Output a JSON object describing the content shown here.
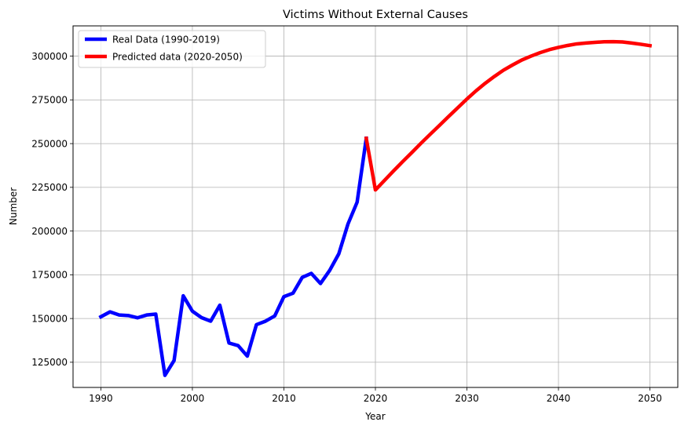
{
  "chart_data": {
    "type": "line",
    "title": "Victims Without External Causes",
    "xlabel": "Year",
    "ylabel": "Number",
    "xlim": [
      1986.96,
      2053.04
    ],
    "ylim": [
      110600,
      317300
    ],
    "xticks": [
      1990,
      2000,
      2010,
      2020,
      2030,
      2040,
      2050
    ],
    "yticks": [
      125000,
      150000,
      175000,
      200000,
      225000,
      250000,
      275000,
      300000
    ],
    "grid": true,
    "legend_position": "top-left",
    "series": [
      {
        "name": "Real Data (1990-2019)",
        "color": "#0000ff",
        "x": [
          1990,
          1991,
          1992,
          1993,
          1994,
          1995,
          1996,
          1997,
          1998,
          1999,
          2000,
          2001,
          2002,
          2003,
          2004,
          2005,
          2006,
          2007,
          2008,
          2009,
          2010,
          2011,
          2012,
          2013,
          2014,
          2015,
          2016,
          2017,
          2018,
          2019
        ],
        "y": [
          151000,
          153800,
          152000,
          151700,
          150400,
          152000,
          152500,
          117500,
          126000,
          163000,
          154200,
          150500,
          148500,
          157600,
          136000,
          134500,
          128500,
          146500,
          148500,
          151500,
          162500,
          164500,
          173500,
          175800,
          170000,
          177500,
          187000,
          204000,
          216500,
          253000
        ]
      },
      {
        "name": "Predicted data (2020-2050)",
        "color": "#ff0000",
        "x": [
          2019,
          2020,
          2021,
          2022,
          2023,
          2024,
          2025,
          2026,
          2027,
          2028,
          2029,
          2030,
          2031,
          2032,
          2033,
          2034,
          2035,
          2036,
          2037,
          2038,
          2039,
          2040,
          2041,
          2042,
          2043,
          2044,
          2045,
          2046,
          2047,
          2048,
          2049,
          2050
        ],
        "y": [
          253000,
          223500,
          229000,
          234500,
          239800,
          245000,
          250300,
          255400,
          260400,
          265500,
          270500,
          275500,
          280200,
          284500,
          288400,
          292000,
          295000,
          297800,
          300000,
          302000,
          303700,
          305000,
          306100,
          307000,
          307500,
          307900,
          308200,
          308300,
          308100,
          307500,
          306800,
          306000
        ]
      }
    ]
  }
}
